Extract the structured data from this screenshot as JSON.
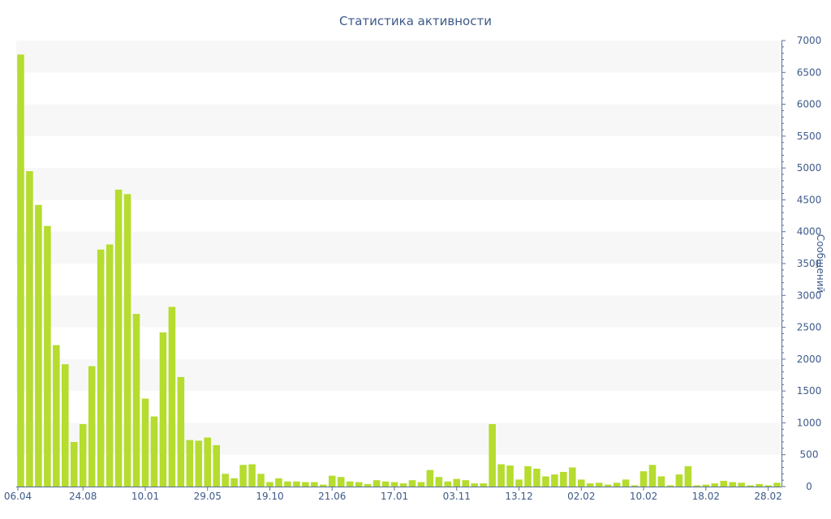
{
  "chart_data": {
    "type": "bar",
    "title": "Статистика активности",
    "ylabel": "Сообщений",
    "xlabel": "",
    "ylim": [
      0,
      7000
    ],
    "y_ticks": [
      0,
      500,
      1000,
      1500,
      2000,
      2500,
      3000,
      3500,
      4000,
      4500,
      5000,
      5500,
      6000,
      6500,
      7000
    ],
    "y_axis_position": "right",
    "grid": "alternating horizontal bands",
    "x_tick_labels": [
      {
        "label": "06.04",
        "index": 0
      },
      {
        "label": "24.08",
        "index": 7
      },
      {
        "label": "10.01",
        "index": 14
      },
      {
        "label": "29.05",
        "index": 21
      },
      {
        "label": "19.10",
        "index": 28
      },
      {
        "label": "21.06",
        "index": 35
      },
      {
        "label": "17.01",
        "index": 42
      },
      {
        "label": "03.11",
        "index": 49
      },
      {
        "label": "13.12",
        "index": 56
      },
      {
        "label": "02.02",
        "index": 63
      },
      {
        "label": "10.02",
        "index": 70
      },
      {
        "label": "18.02",
        "index": 77
      },
      {
        "label": "28.02",
        "index": 84
      }
    ],
    "values": [
      6780,
      4950,
      4420,
      4090,
      2220,
      1920,
      700,
      980,
      1890,
      3720,
      3800,
      4660,
      4590,
      2710,
      1380,
      1100,
      2420,
      2820,
      1720,
      730,
      720,
      770,
      650,
      200,
      130,
      340,
      350,
      200,
      70,
      130,
      80,
      80,
      70,
      70,
      30,
      170,
      150,
      80,
      70,
      40,
      100,
      80,
      70,
      50,
      100,
      70,
      260,
      150,
      80,
      120,
      100,
      50,
      50,
      980,
      350,
      330,
      110,
      320,
      280,
      160,
      190,
      230,
      300,
      110,
      50,
      60,
      30,
      60,
      110,
      20,
      240,
      340,
      160,
      20,
      190,
      320,
      20,
      30,
      50,
      90,
      70,
      60,
      20,
      40,
      20,
      60
    ],
    "colors": {
      "bar": "#b5dc2e",
      "text": "#3d5a8a",
      "band": "#f7f7f7",
      "axis": "#5a6f99"
    }
  }
}
